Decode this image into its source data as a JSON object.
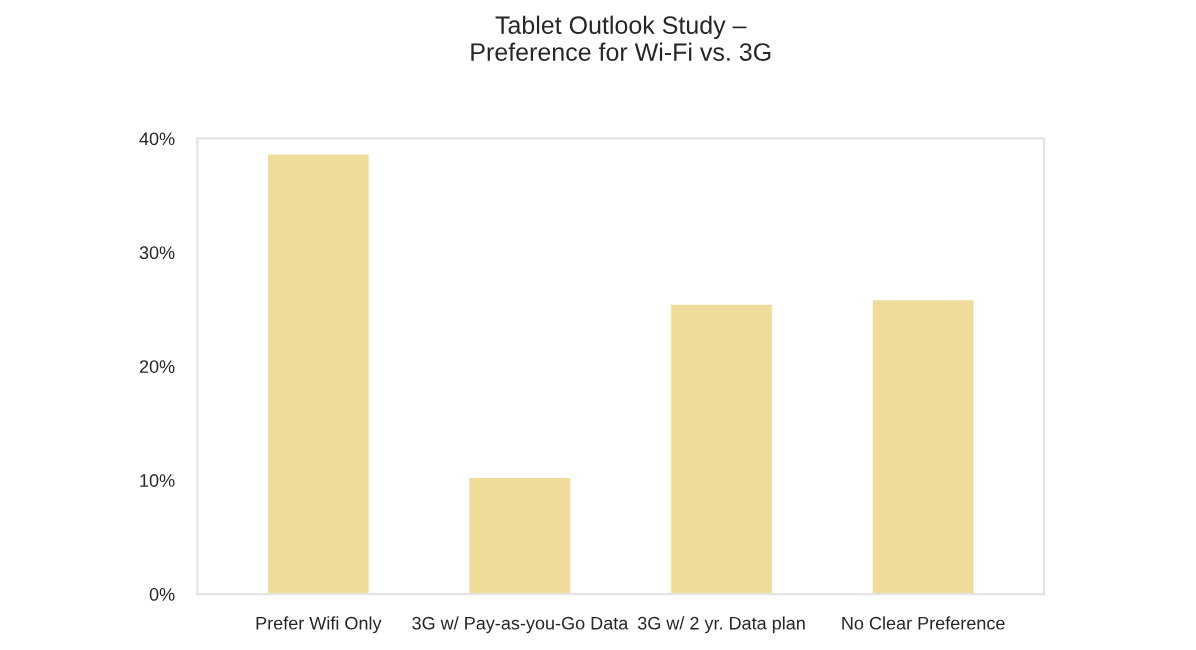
{
  "chart_data": {
    "type": "bar",
    "title": "Tablet Outlook Study –\nPreference for Wi-Fi vs. 3G",
    "categories": [
      "Prefer Wifi Only",
      "3G w/ Pay-as-you-Go Data",
      "3G w/ 2 yr. Data plan",
      "No Clear Preference"
    ],
    "values": [
      38.6,
      10.2,
      25.4,
      25.8
    ],
    "color": "#f0dc9a",
    "ylim": [
      0,
      40
    ],
    "yticks": [
      {
        "value": 0,
        "label": "0%"
      },
      {
        "value": 10,
        "label": "10%"
      },
      {
        "value": 20,
        "label": "20%"
      },
      {
        "value": 30,
        "label": "30%"
      },
      {
        "value": 40,
        "label": "40%"
      }
    ],
    "grid": false,
    "legend": false
  }
}
